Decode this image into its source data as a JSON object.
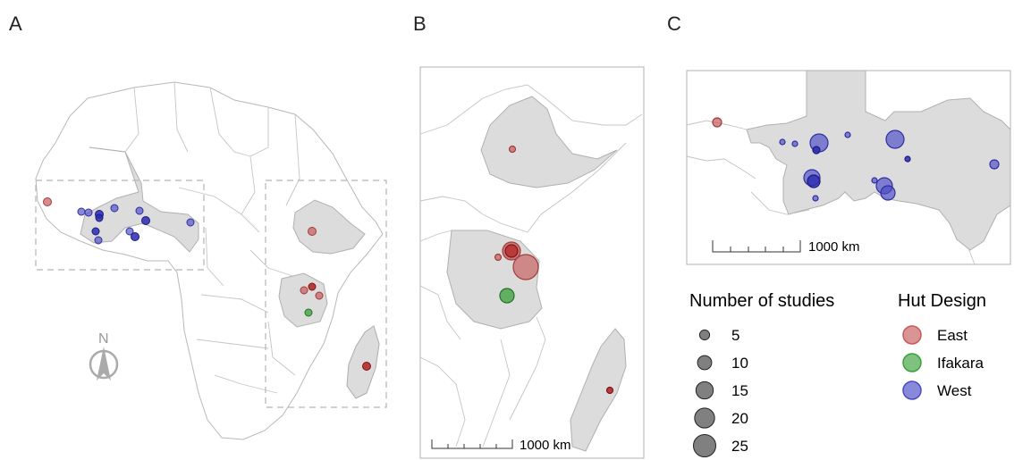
{
  "panels": {
    "a": "A",
    "b": "B",
    "c": "C"
  },
  "compass": {
    "north": "N"
  },
  "scalebars": {
    "b": "1000 km",
    "c": "1000 km"
  },
  "legend": {
    "size_title": "Number of studies",
    "sizes": [
      {
        "label": "5",
        "value": 5
      },
      {
        "label": "10",
        "value": 10
      },
      {
        "label": "15",
        "value": 15
      },
      {
        "label": "20",
        "value": 20
      },
      {
        "label": "25",
        "value": 25
      }
    ],
    "color_title": "Hut Design",
    "designs": [
      {
        "label": "East",
        "color": "#c65a5a"
      },
      {
        "label": "Ifakara",
        "color": "#3aa03a"
      },
      {
        "label": "West",
        "color": "#4a4ac9"
      }
    ]
  }
}
